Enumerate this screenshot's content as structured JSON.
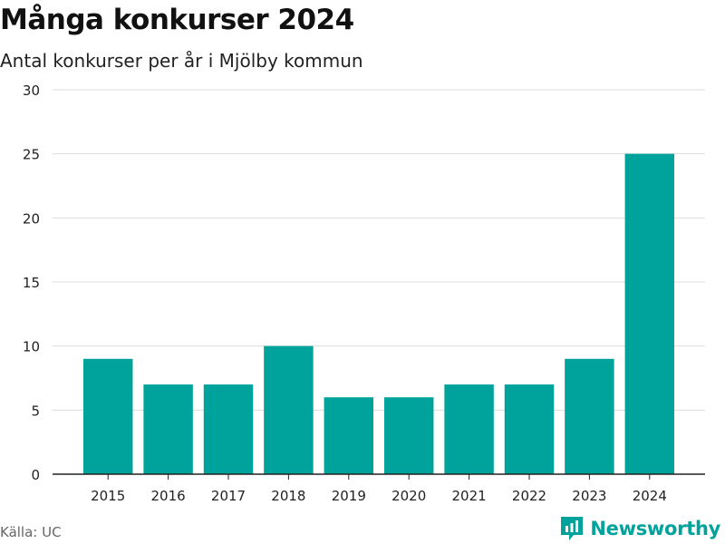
{
  "title": "Många konkurser 2024",
  "subtitle": "Antal konkurser per år i Mjölby kommun",
  "source": "Källa: UC",
  "brand": {
    "name": "Newsworthy",
    "icon": "newsworthy-logo-icon"
  },
  "colors": {
    "bar": "#00a39b",
    "grid": "#dcdcdc",
    "axis": "#222222",
    "brand": "#00a39b"
  },
  "chart_data": {
    "type": "bar",
    "title": "Många konkurser 2024",
    "subtitle": "Antal konkurser per år i Mjölby kommun",
    "xlabel": "",
    "ylabel": "",
    "categories": [
      "2015",
      "2016",
      "2017",
      "2018",
      "2019",
      "2020",
      "2021",
      "2022",
      "2023",
      "2024"
    ],
    "values": [
      9,
      7,
      7,
      10,
      6,
      6,
      7,
      7,
      9,
      25
    ],
    "ylim": [
      0,
      30
    ],
    "yticks": [
      0,
      5,
      10,
      15,
      20,
      25,
      30
    ],
    "grid": true,
    "legend": "none"
  }
}
